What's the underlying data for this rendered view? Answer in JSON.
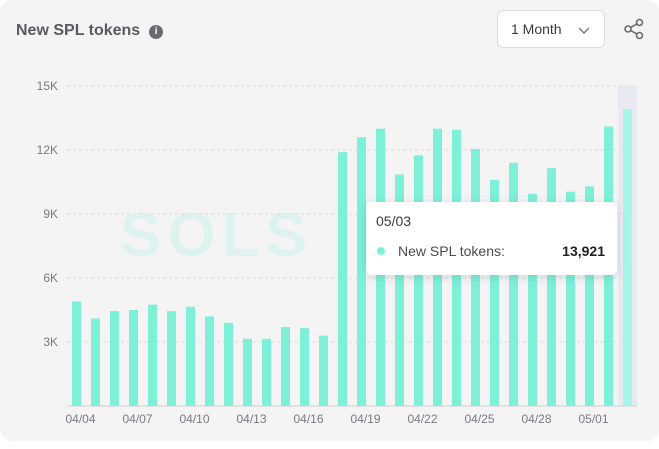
{
  "header": {
    "title": "New SPL tokens",
    "info_icon": "info-icon",
    "range_selected": "1 Month",
    "share_icon": "share-icon"
  },
  "watermark": {
    "text": "SOLS"
  },
  "colors": {
    "bar": "#7ef0d8",
    "bar_highlight": "#a6f5ea",
    "hover_band": "#e9e9f2",
    "gridline": "#dddddf"
  },
  "chart_data": {
    "type": "bar",
    "title": "New SPL tokens",
    "xlabel": "",
    "ylabel": "",
    "ylim": [
      0,
      15000
    ],
    "yticks": [
      0,
      3000,
      6000,
      9000,
      12000,
      15000
    ],
    "ytick_labels": [
      "",
      "3K",
      "6K",
      "9K",
      "12K",
      "15K"
    ],
    "grid": "horizontal dashed",
    "categories": [
      "04/04",
      "04/05",
      "04/06",
      "04/07",
      "04/08",
      "04/09",
      "04/10",
      "04/11",
      "04/12",
      "04/13",
      "04/14",
      "04/15",
      "04/16",
      "04/17",
      "04/18",
      "04/19",
      "04/20",
      "04/21",
      "04/22",
      "04/23",
      "04/24",
      "04/25",
      "04/26",
      "04/27",
      "04/28",
      "04/29",
      "04/30",
      "05/01",
      "05/02",
      "05/03"
    ],
    "xtick_labels": [
      "04/04",
      "04/07",
      "04/10",
      "04/13",
      "04/16",
      "04/19",
      "04/22",
      "04/25",
      "04/28",
      "05/01"
    ],
    "series": [
      {
        "name": "New SPL tokens",
        "values": [
          4900,
          4100,
          4450,
          4500,
          4750,
          4450,
          4650,
          4200,
          3900,
          3150,
          3150,
          3700,
          3650,
          3300,
          11900,
          12600,
          13000,
          10850,
          11750,
          13000,
          12950,
          12050,
          10600,
          11400,
          9950,
          11150,
          10050,
          10300,
          13100,
          13921
        ]
      }
    ],
    "highlight_index": 29
  },
  "tooltip": {
    "date": "05/03",
    "series_label": "New SPL tokens:",
    "value": "13,921"
  }
}
